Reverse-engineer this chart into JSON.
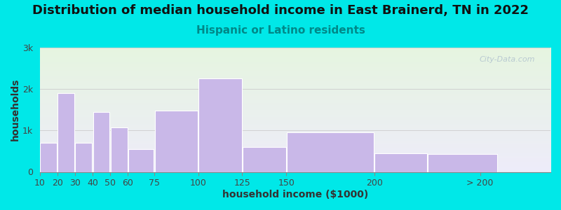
{
  "title": "Distribution of median household income in East Brainerd, TN in 2022",
  "subtitle": "Hispanic or Latino residents",
  "xlabel": "household income ($1000)",
  "ylabel": "households",
  "bin_lefts": [
    10,
    20,
    30,
    40,
    50,
    60,
    75,
    100,
    125,
    150,
    200,
    230
  ],
  "bin_widths": [
    10,
    10,
    10,
    10,
    10,
    15,
    25,
    25,
    25,
    50,
    30,
    40
  ],
  "bar_values": [
    700,
    1900,
    700,
    1450,
    1075,
    550,
    1475,
    2250,
    600,
    950,
    450,
    430
  ],
  "xtick_positions": [
    10,
    20,
    30,
    40,
    50,
    60,
    75,
    100,
    125,
    150,
    200,
    260
  ],
  "xtick_labels": [
    "10",
    "20",
    "30",
    "40",
    "50",
    "60",
    "75",
    "100",
    "125",
    "150",
    "200",
    "> 200"
  ],
  "bar_color": "#c9b8e8",
  "bar_edge_color": "#ffffff",
  "background_outer": "#00e8e8",
  "background_plot_top": "#e6f5e0",
  "background_plot_bottom": "#eeecfa",
  "ylim": [
    0,
    3000
  ],
  "xlim": [
    10,
    300
  ],
  "yticks": [
    0,
    1000,
    2000,
    3000
  ],
  "ytick_labels": [
    "0",
    "1k",
    "2k",
    "3k"
  ],
  "title_fontsize": 13,
  "subtitle_fontsize": 11,
  "subtitle_color": "#008888",
  "axis_label_fontsize": 10,
  "tick_fontsize": 9,
  "watermark": "City-Data.com",
  "watermark_color": "#aabbcc"
}
